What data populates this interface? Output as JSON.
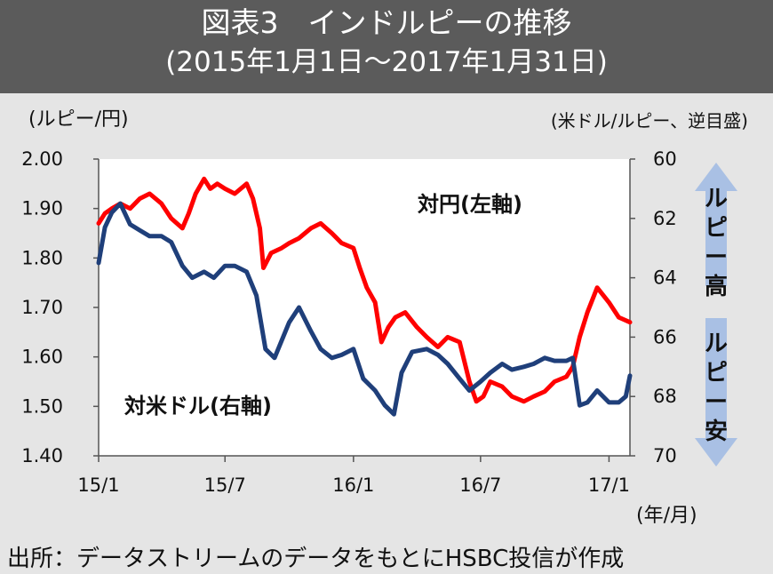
{
  "header": {
    "title": "図表3　インドルピーの推移",
    "subtitle": "(2015年1月1日～2017年1月31日)"
  },
  "units": {
    "left": "(ルピー/円)",
    "right": "(米ドル/ルピー、逆目盛)",
    "bottom": "(年/月)"
  },
  "source": "出所：データストリームのデータをもとにHSBC投信が作成",
  "arrows": {
    "up_label": "ルピー高",
    "down_label": "ルピー安",
    "color": "#a9c0e4"
  },
  "chart_data": {
    "type": "line",
    "x_ticks": [
      "15/1",
      "15/7",
      "16/1",
      "16/7",
      "17/1"
    ],
    "x_range": [
      "2015-01-01",
      "2017-01-31"
    ],
    "y_left": {
      "range": [
        1.4,
        2.0
      ],
      "ticks": [
        "1.40",
        "1.50",
        "1.60",
        "1.70",
        "1.80",
        "1.90",
        "2.00"
      ]
    },
    "y_right": {
      "range": [
        70,
        60
      ],
      "inverted": true,
      "ticks": [
        "60",
        "62",
        "64",
        "66",
        "68",
        "70"
      ]
    },
    "grid": false,
    "series": [
      {
        "name": "対円(左軸)",
        "axis": "left",
        "color": "#ff0000",
        "points": [
          [
            "2015-01-01",
            1.87
          ],
          [
            "2015-01-10",
            1.89
          ],
          [
            "2015-01-20",
            1.9
          ],
          [
            "2015-02-01",
            1.91
          ],
          [
            "2015-02-15",
            1.9
          ],
          [
            "2015-03-01",
            1.92
          ],
          [
            "2015-03-15",
            1.93
          ],
          [
            "2015-04-01",
            1.91
          ],
          [
            "2015-04-15",
            1.88
          ],
          [
            "2015-05-01",
            1.86
          ],
          [
            "2015-05-10",
            1.89
          ],
          [
            "2015-05-20",
            1.93
          ],
          [
            "2015-06-01",
            1.96
          ],
          [
            "2015-06-10",
            1.94
          ],
          [
            "2015-06-20",
            1.95
          ],
          [
            "2015-07-01",
            1.94
          ],
          [
            "2015-07-15",
            1.93
          ],
          [
            "2015-08-01",
            1.95
          ],
          [
            "2015-08-10",
            1.92
          ],
          [
            "2015-08-20",
            1.86
          ],
          [
            "2015-08-25",
            1.78
          ],
          [
            "2015-09-05",
            1.81
          ],
          [
            "2015-09-20",
            1.82
          ],
          [
            "2015-10-01",
            1.83
          ],
          [
            "2015-10-15",
            1.84
          ],
          [
            "2015-11-01",
            1.86
          ],
          [
            "2015-11-15",
            1.87
          ],
          [
            "2015-12-01",
            1.85
          ],
          [
            "2015-12-15",
            1.83
          ],
          [
            "2016-01-01",
            1.82
          ],
          [
            "2016-01-10",
            1.78
          ],
          [
            "2016-01-20",
            1.74
          ],
          [
            "2016-02-01",
            1.71
          ],
          [
            "2016-02-10",
            1.63
          ],
          [
            "2016-02-20",
            1.66
          ],
          [
            "2016-03-01",
            1.68
          ],
          [
            "2016-03-15",
            1.69
          ],
          [
            "2016-04-01",
            1.66
          ],
          [
            "2016-04-15",
            1.64
          ],
          [
            "2016-05-01",
            1.62
          ],
          [
            "2016-05-15",
            1.64
          ],
          [
            "2016-06-01",
            1.63
          ],
          [
            "2016-06-15",
            1.55
          ],
          [
            "2016-06-25",
            1.51
          ],
          [
            "2016-07-05",
            1.52
          ],
          [
            "2016-07-15",
            1.55
          ],
          [
            "2016-08-01",
            1.54
          ],
          [
            "2016-08-15",
            1.52
          ],
          [
            "2016-09-01",
            1.51
          ],
          [
            "2016-09-15",
            1.52
          ],
          [
            "2016-10-01",
            1.53
          ],
          [
            "2016-10-15",
            1.55
          ],
          [
            "2016-11-01",
            1.56
          ],
          [
            "2016-11-10",
            1.58
          ],
          [
            "2016-11-20",
            1.64
          ],
          [
            "2016-12-01",
            1.69
          ],
          [
            "2016-12-15",
            1.74
          ],
          [
            "2017-01-01",
            1.71
          ],
          [
            "2017-01-15",
            1.68
          ],
          [
            "2017-01-31",
            1.67
          ]
        ]
      },
      {
        "name": "対米ドル(右軸)",
        "axis": "right",
        "color": "#1f3f7a",
        "points": [
          [
            "2015-01-01",
            63.5
          ],
          [
            "2015-01-10",
            62.3
          ],
          [
            "2015-01-20",
            61.8
          ],
          [
            "2015-02-01",
            61.5
          ],
          [
            "2015-02-15",
            62.2
          ],
          [
            "2015-03-01",
            62.4
          ],
          [
            "2015-03-15",
            62.6
          ],
          [
            "2015-04-01",
            62.6
          ],
          [
            "2015-04-15",
            62.8
          ],
          [
            "2015-05-01",
            63.6
          ],
          [
            "2015-05-15",
            64.0
          ],
          [
            "2015-06-01",
            63.8
          ],
          [
            "2015-06-15",
            64.0
          ],
          [
            "2015-07-01",
            63.6
          ],
          [
            "2015-07-15",
            63.6
          ],
          [
            "2015-08-01",
            63.8
          ],
          [
            "2015-08-15",
            64.6
          ],
          [
            "2015-08-28",
            66.4
          ],
          [
            "2015-09-10",
            66.7
          ],
          [
            "2015-10-01",
            65.5
          ],
          [
            "2015-10-15",
            65.0
          ],
          [
            "2015-11-01",
            65.8
          ],
          [
            "2015-11-15",
            66.4
          ],
          [
            "2015-12-01",
            66.7
          ],
          [
            "2015-12-15",
            66.6
          ],
          [
            "2016-01-01",
            66.4
          ],
          [
            "2016-01-15",
            67.4
          ],
          [
            "2016-02-01",
            67.8
          ],
          [
            "2016-02-15",
            68.3
          ],
          [
            "2016-02-28",
            68.6
          ],
          [
            "2016-03-10",
            67.2
          ],
          [
            "2016-03-25",
            66.5
          ],
          [
            "2016-04-15",
            66.4
          ],
          [
            "2016-05-01",
            66.6
          ],
          [
            "2016-05-15",
            66.9
          ],
          [
            "2016-06-01",
            67.4
          ],
          [
            "2016-06-15",
            67.8
          ],
          [
            "2016-07-01",
            67.5
          ],
          [
            "2016-07-15",
            67.2
          ],
          [
            "2016-08-01",
            66.9
          ],
          [
            "2016-08-15",
            67.1
          ],
          [
            "2016-09-01",
            67.0
          ],
          [
            "2016-09-15",
            66.9
          ],
          [
            "2016-10-01",
            66.7
          ],
          [
            "2016-10-15",
            66.8
          ],
          [
            "2016-11-01",
            66.8
          ],
          [
            "2016-11-10",
            66.7
          ],
          [
            "2016-11-20",
            68.3
          ],
          [
            "2016-12-01",
            68.2
          ],
          [
            "2016-12-15",
            67.8
          ],
          [
            "2017-01-01",
            68.2
          ],
          [
            "2017-01-15",
            68.2
          ],
          [
            "2017-01-25",
            68.0
          ],
          [
            "2017-01-31",
            67.3
          ]
        ]
      }
    ],
    "annotations": [
      "対円(左軸)",
      "対米ドル(右軸)"
    ]
  }
}
